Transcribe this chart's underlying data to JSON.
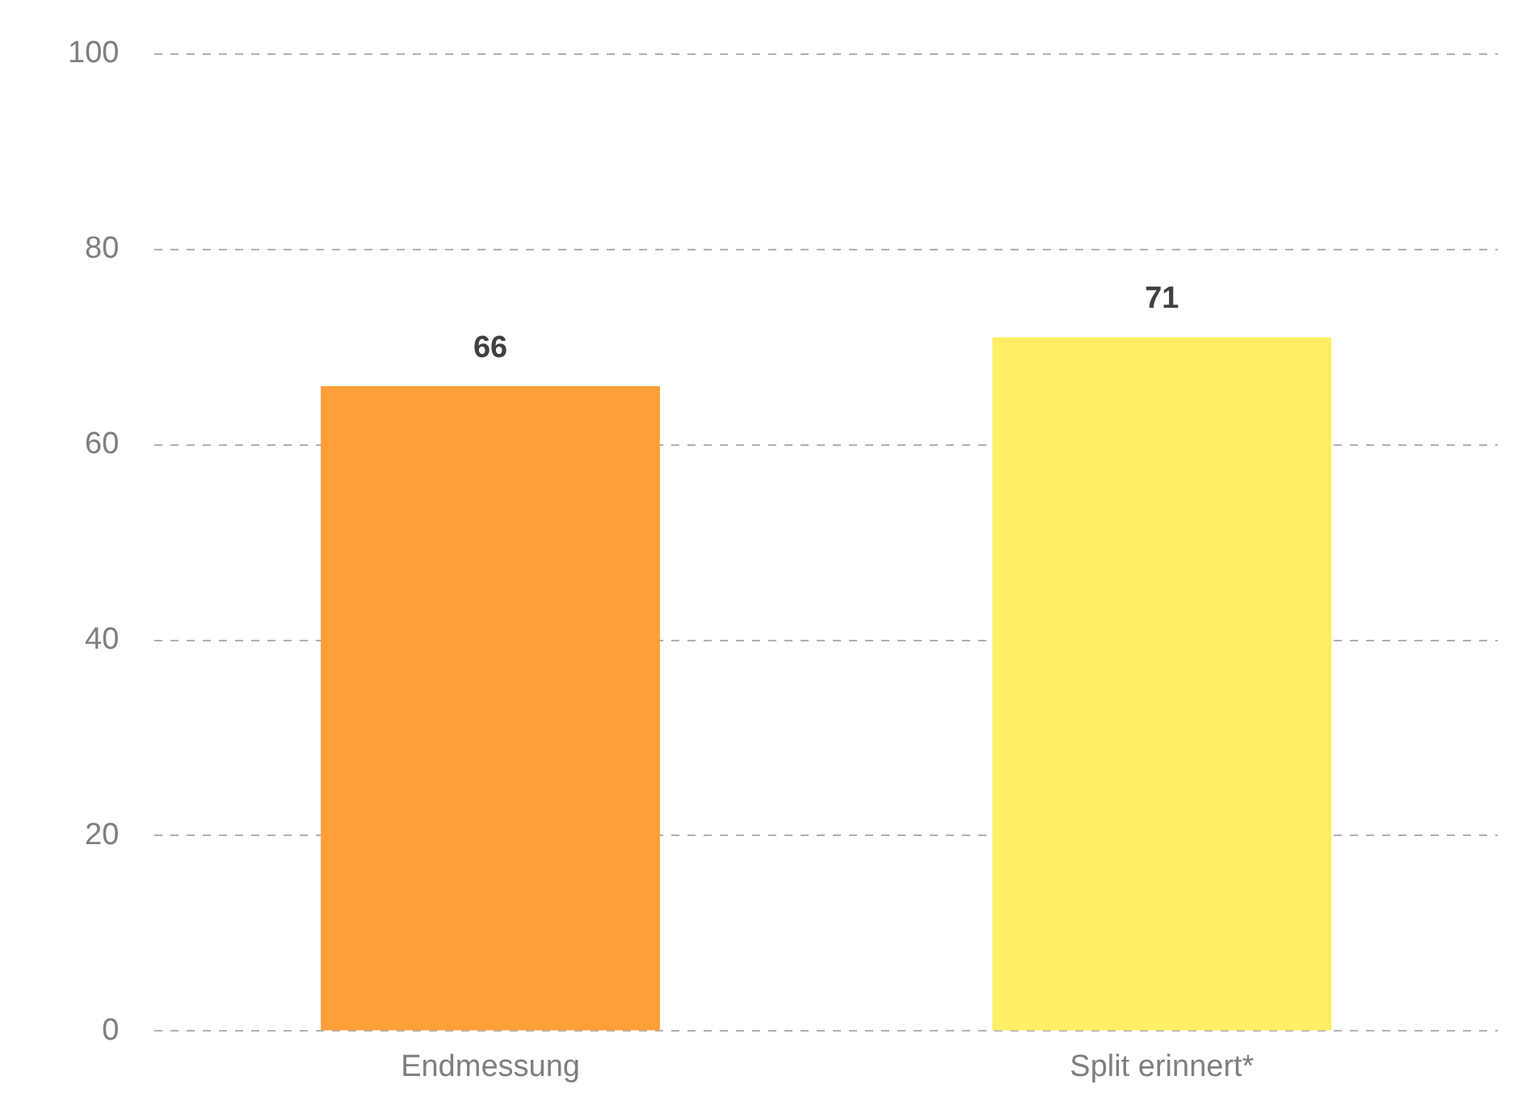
{
  "chart_data": {
    "type": "bar",
    "categories": [
      "Endmessung",
      "Split erinnert*"
    ],
    "values": [
      66,
      71
    ],
    "colors": [
      "#ff9f3a",
      "#ffee66"
    ],
    "ylim": [
      0,
      100
    ],
    "yticks": [
      0,
      20,
      40,
      60,
      80,
      100
    ],
    "grid": "y",
    "line_style": "dashed",
    "data_labels": true,
    "legend": false
  }
}
